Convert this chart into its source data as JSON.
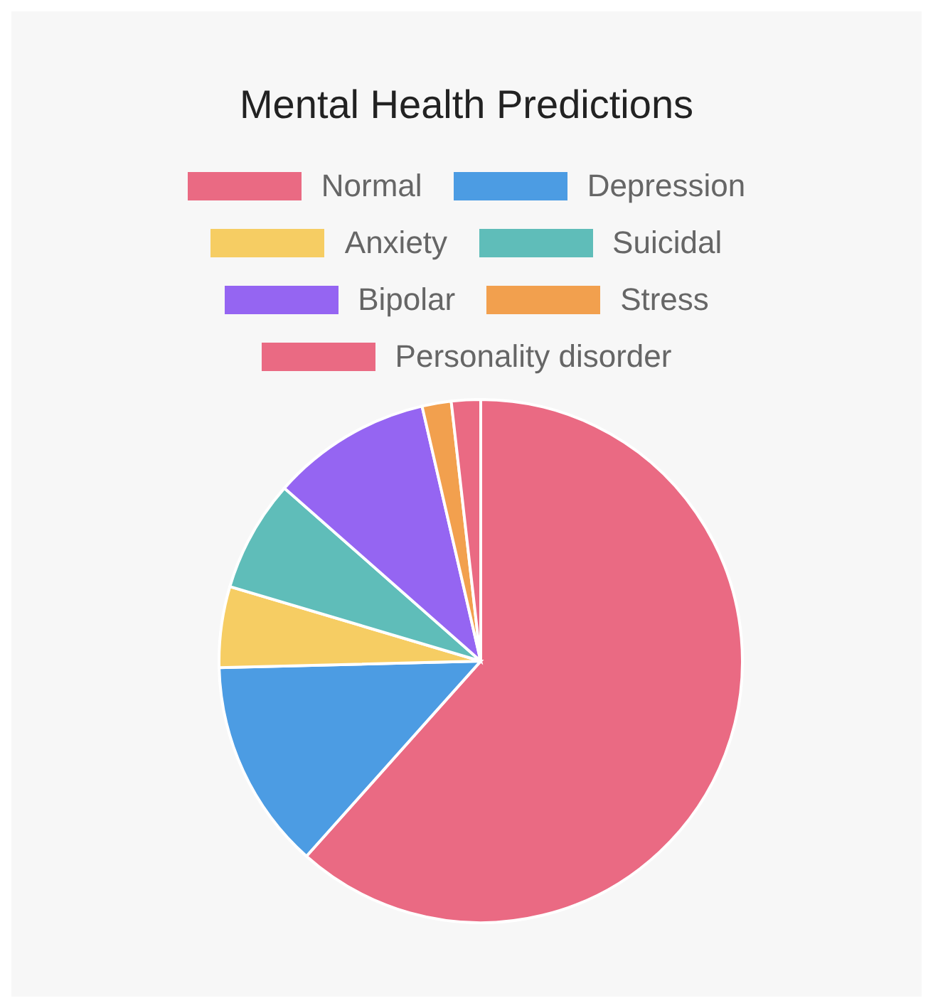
{
  "chart_data": {
    "type": "pie",
    "title": "Mental Health Predictions",
    "categories": [
      "Normal",
      "Depression",
      "Anxiety",
      "Suicidal",
      "Bipolar",
      "Stress",
      "Personality disorder"
    ],
    "values": [
      61.6,
      13.0,
      5.0,
      6.9,
      9.9,
      1.8,
      1.8
    ],
    "colors": [
      "#ea6a83",
      "#4c9ce3",
      "#f6cd63",
      "#5fbdb9",
      "#9565f2",
      "#f2a04e",
      "#ea6a83"
    ],
    "legend": "top"
  }
}
